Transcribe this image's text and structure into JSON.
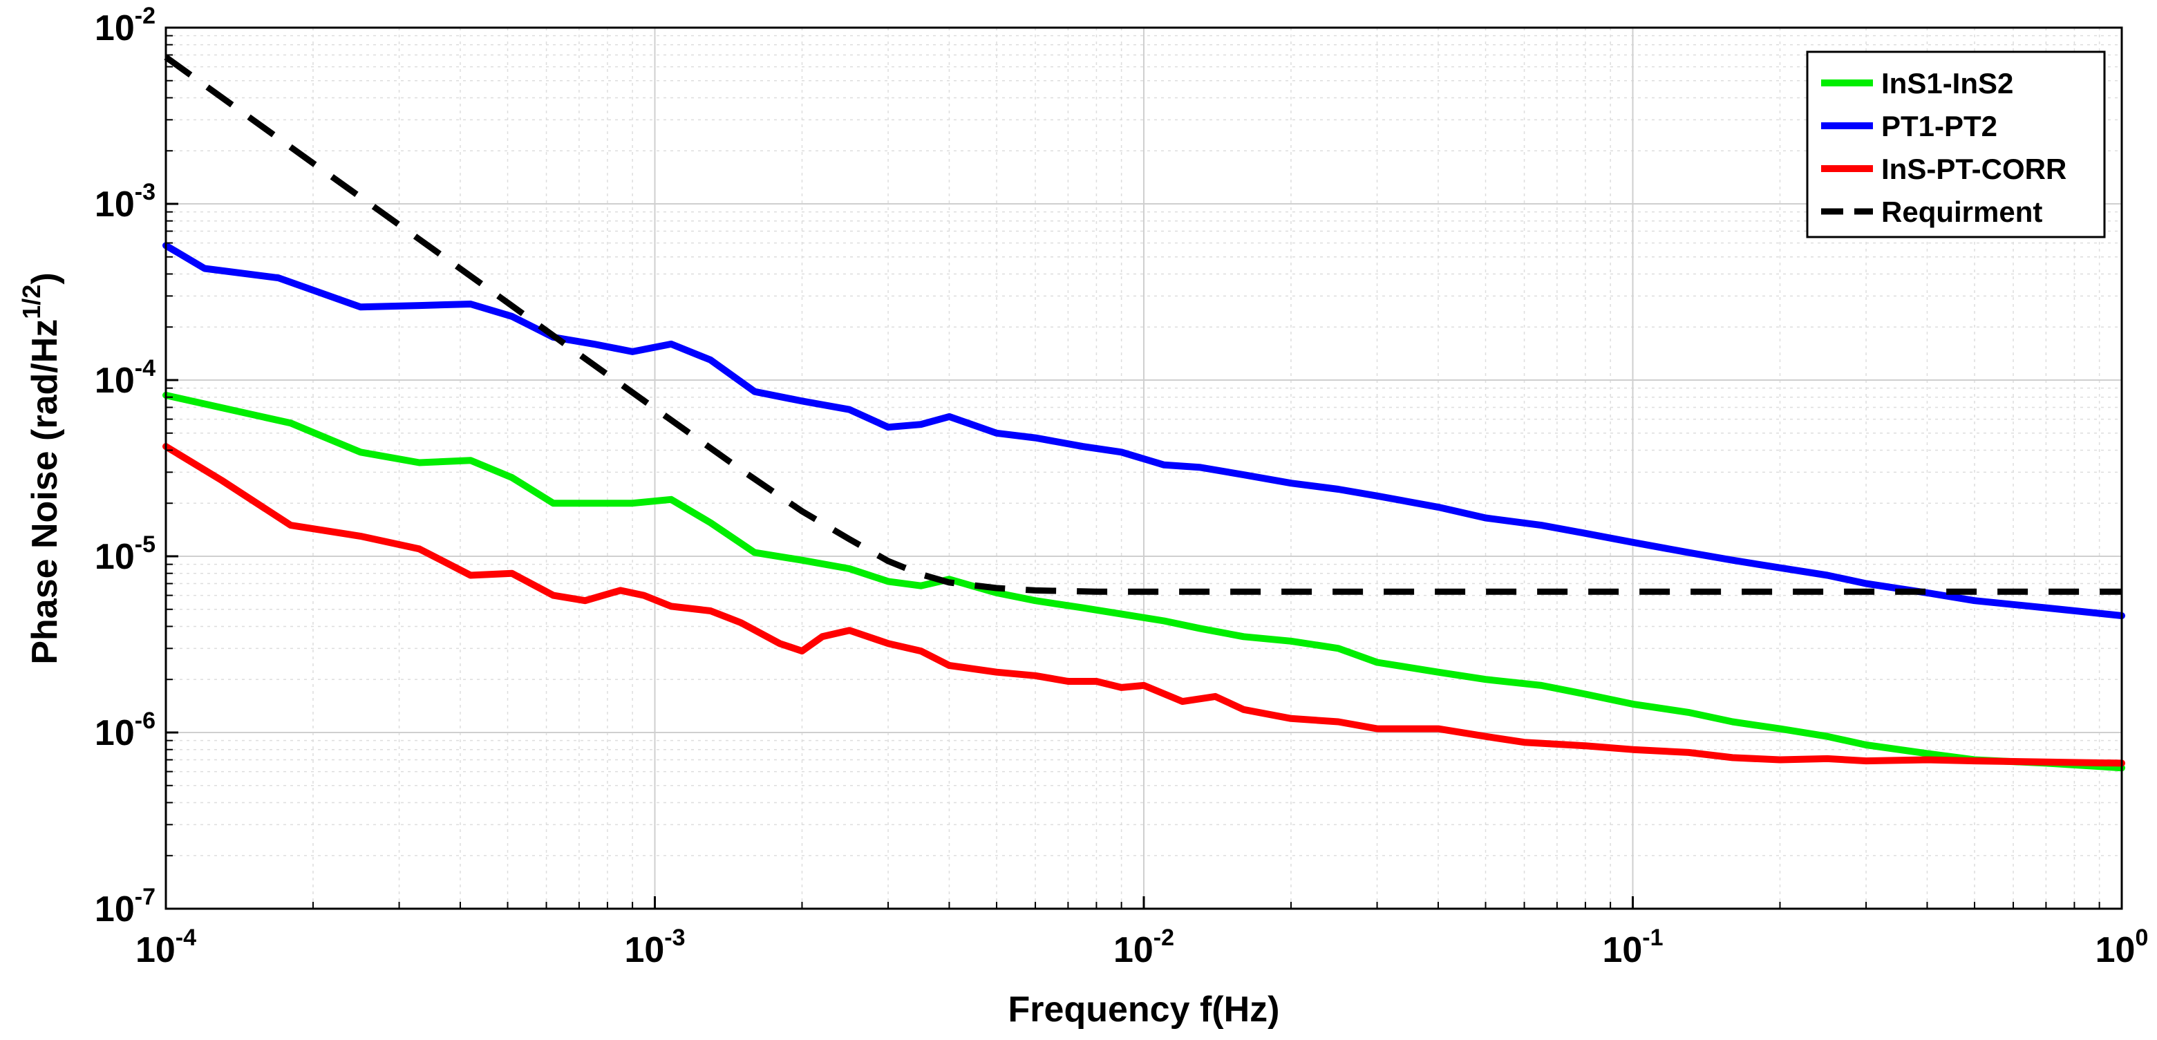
{
  "chart_data": {
    "type": "line",
    "title": "",
    "xlabel": "Frequency f(Hz)",
    "ylabel_main": "Phase Noise (rad/Hz",
    "ylabel_sup": "1/2",
    "ylabel_close": ")",
    "xscale": "log",
    "yscale": "log",
    "xlim": [
      0.0001,
      1
    ],
    "ylim": [
      1e-07,
      0.01
    ],
    "grid": true,
    "legend_position": "top-right",
    "x_ticks": [
      {
        "value": 0.0001,
        "base": "10",
        "exp": "-4"
      },
      {
        "value": 0.001,
        "base": "10",
        "exp": "-3"
      },
      {
        "value": 0.01,
        "base": "10",
        "exp": "-2"
      },
      {
        "value": 0.1,
        "base": "10",
        "exp": "-1"
      },
      {
        "value": 1,
        "base": "10",
        "exp": "0"
      }
    ],
    "y_ticks": [
      {
        "value": 1e-07,
        "base": "10",
        "exp": "-7"
      },
      {
        "value": 1e-06,
        "base": "10",
        "exp": "-6"
      },
      {
        "value": 1e-05,
        "base": "10",
        "exp": "-5"
      },
      {
        "value": 0.0001,
        "base": "10",
        "exp": "-4"
      },
      {
        "value": 0.001,
        "base": "10",
        "exp": "-3"
      },
      {
        "value": 0.01,
        "base": "10",
        "exp": "-2"
      }
    ],
    "series": [
      {
        "name": "InS1-InS2",
        "color": "#00ee00",
        "dash": false,
        "x": [
          0.0001,
          0.00018,
          0.00025,
          0.00033,
          0.00042,
          0.00051,
          0.00062,
          0.00075,
          0.0009,
          0.00108,
          0.0013,
          0.0016,
          0.002,
          0.0025,
          0.003,
          0.0035,
          0.004,
          0.005,
          0.006,
          0.0075,
          0.009,
          0.011,
          0.013,
          0.016,
          0.02,
          0.025,
          0.03,
          0.04,
          0.05,
          0.065,
          0.08,
          0.1,
          0.13,
          0.16,
          0.2,
          0.25,
          0.3,
          0.4,
          0.5,
          0.7,
          1.0
        ],
        "y": [
          8.2e-05,
          5.7e-05,
          3.9e-05,
          3.4e-05,
          3.5e-05,
          2.8e-05,
          2e-05,
          2e-05,
          2e-05,
          2.1e-05,
          1.55e-05,
          1.05e-05,
          9.5e-06,
          8.5e-06,
          7.2e-06,
          6.8e-06,
          7.4e-06,
          6.2e-06,
          5.6e-06,
          5.1e-06,
          4.7e-06,
          4.3e-06,
          3.9e-06,
          3.5e-06,
          3.3e-06,
          3e-06,
          2.5e-06,
          2.2e-06,
          2e-06,
          1.85e-06,
          1.65e-06,
          1.45e-06,
          1.3e-06,
          1.15e-06,
          1.05e-06,
          9.5e-07,
          8.5e-07,
          7.6e-07,
          7e-07,
          6.7e-07,
          6.3e-07
        ]
      },
      {
        "name": "PT1-PT2",
        "color": "#0000ff",
        "dash": false,
        "x": [
          0.0001,
          0.00012,
          0.00017,
          0.00025,
          0.00033,
          0.00042,
          0.00051,
          0.00062,
          0.00075,
          0.0009,
          0.00108,
          0.0013,
          0.0016,
          0.002,
          0.0025,
          0.003,
          0.0035,
          0.004,
          0.005,
          0.006,
          0.0075,
          0.009,
          0.011,
          0.013,
          0.016,
          0.02,
          0.025,
          0.03,
          0.04,
          0.05,
          0.065,
          0.08,
          0.1,
          0.13,
          0.16,
          0.2,
          0.25,
          0.3,
          0.4,
          0.5,
          0.7,
          1.0
        ],
        "y": [
          0.00058,
          0.00043,
          0.00038,
          0.00026,
          0.000265,
          0.00027,
          0.00023,
          0.000175,
          0.00016,
          0.000145,
          0.00016,
          0.00013,
          8.6e-05,
          7.6e-05,
          6.8e-05,
          5.4e-05,
          5.6e-05,
          6.2e-05,
          5e-05,
          4.7e-05,
          4.2e-05,
          3.9e-05,
          3.3e-05,
          3.2e-05,
          2.9e-05,
          2.6e-05,
          2.4e-05,
          2.2e-05,
          1.9e-05,
          1.65e-05,
          1.5e-05,
          1.35e-05,
          1.2e-05,
          1.05e-05,
          9.5e-06,
          8.6e-06,
          7.8e-06,
          7e-06,
          6.2e-06,
          5.6e-06,
          5.1e-06,
          4.6e-06
        ]
      },
      {
        "name": "InS-PT-CORR",
        "color": "#ff0000",
        "dash": false,
        "x": [
          0.0001,
          0.00013,
          0.00018,
          0.00025,
          0.00033,
          0.00042,
          0.00051,
          0.00062,
          0.00072,
          0.00085,
          0.00095,
          0.00108,
          0.0013,
          0.0015,
          0.0018,
          0.002,
          0.0022,
          0.0025,
          0.003,
          0.0035,
          0.004,
          0.005,
          0.006,
          0.007,
          0.008,
          0.009,
          0.01,
          0.012,
          0.014,
          0.016,
          0.02,
          0.025,
          0.03,
          0.04,
          0.05,
          0.06,
          0.08,
          0.1,
          0.13,
          0.16,
          0.2,
          0.25,
          0.3,
          0.4,
          0.5,
          0.7,
          1.0
        ],
        "y": [
          4.2e-05,
          2.7e-05,
          1.5e-05,
          1.3e-05,
          1.1e-05,
          7.8e-06,
          8e-06,
          6e-06,
          5.6e-06,
          6.4e-06,
          6e-06,
          5.2e-06,
          4.9e-06,
          4.2e-06,
          3.2e-06,
          2.9e-06,
          3.5e-06,
          3.8e-06,
          3.2e-06,
          2.9e-06,
          2.4e-06,
          2.2e-06,
          2.1e-06,
          1.95e-06,
          1.95e-06,
          1.8e-06,
          1.85e-06,
          1.5e-06,
          1.6e-06,
          1.35e-06,
          1.2e-06,
          1.15e-06,
          1.05e-06,
          1.05e-06,
          9.5e-07,
          8.8e-07,
          8.4e-07,
          8e-07,
          7.7e-07,
          7.2e-07,
          7e-07,
          7.1e-07,
          6.9e-07,
          7e-07,
          6.9e-07,
          6.8e-07,
          6.7e-07
        ]
      },
      {
        "name": "Requirment",
        "color": "#000000",
        "dash": true,
        "x": [
          0.0001,
          0.0002,
          0.0003,
          0.0005,
          0.0007,
          0.001,
          0.0015,
          0.002,
          0.0025,
          0.003,
          0.0035,
          0.004,
          0.005,
          0.006,
          0.008,
          0.01,
          0.1,
          1.0
        ],
        "y": [
          0.0068,
          0.0017,
          0.00076,
          0.000275,
          0.00014,
          6.9e-05,
          3.1e-05,
          1.8e-05,
          1.25e-05,
          9.4e-06,
          7.9e-06,
          7.1e-06,
          6.6e-06,
          6.4e-06,
          6.3e-06,
          6.3e-06,
          6.3e-06,
          6.3e-06
        ]
      }
    ]
  }
}
